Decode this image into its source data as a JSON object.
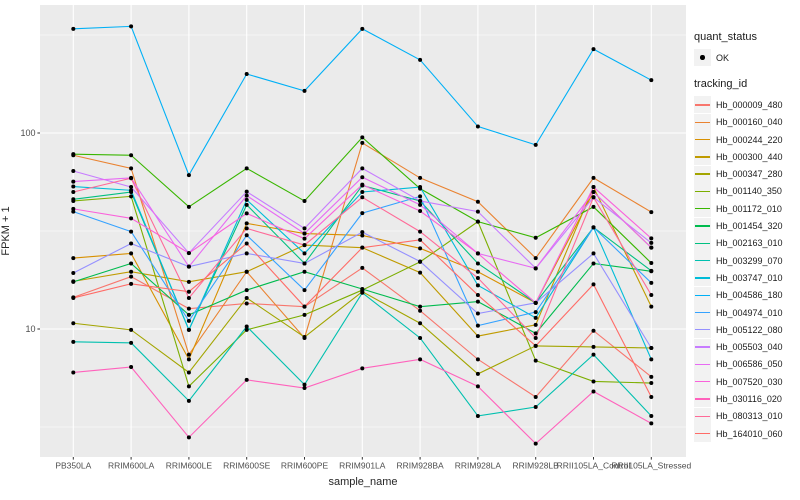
{
  "figure": {
    "background": "#FFFFFF",
    "panel_background": "#EBEBEB",
    "grid_color": "#FFFFFF",
    "tick_color": "#333333",
    "tick_label_color": "#4d4d4d",
    "point_color": "#000000"
  },
  "axes": {
    "y_title": "FPKM + 1",
    "x_title": "sample_name",
    "y_tick_labels": [
      "100",
      "10"
    ],
    "y_tick_values": [
      100,
      10
    ],
    "y_minor_values": [
      316.2,
      31.62,
      3.162
    ]
  },
  "legend": {
    "quant_status_title": "quant_status",
    "quant_status_items": [
      {
        "label": "OK",
        "shape": "point",
        "color": "#000000"
      }
    ],
    "tracking_title": "tracking_id",
    "key_fill": "#F2F2F2"
  },
  "chart_data": {
    "type": "line",
    "title": "",
    "x_label": "sample_name",
    "y_label": "FPKM + 1",
    "y_scale": "log10",
    "ylim": [
      2.2,
      450
    ],
    "grid": true,
    "legend_position": "right",
    "categories": [
      "PB350LA",
      "RRIM600LA",
      "RRIM600LE",
      "RRIM600SE",
      "RRIM600PE",
      "RRIM901LA",
      "RRIM928BA",
      "RRIM928LA",
      "RRIM928LB",
      "RRII105LA_Control",
      "RRII105LA_Stressed"
    ],
    "series": [
      {
        "name": "Hb_000009_480",
        "color": "#F8766D",
        "values": [
          14.5,
          18.5,
          12.7,
          13.5,
          13.0,
          20.5,
          12.4,
          7.0,
          4.5,
          9.8,
          5.7
        ]
      },
      {
        "name": "Hb_000160_040",
        "color": "#EA8331",
        "values": [
          77,
          66,
          7.4,
          19.6,
          9.0,
          89,
          59,
          44.6,
          23,
          59,
          39.5
        ]
      },
      {
        "name": "Hb_000244_220",
        "color": "#D89000",
        "values": [
          23,
          24.3,
          7.0,
          34.6,
          30.7,
          30,
          25.8,
          19.6,
          13.6,
          50,
          26
        ]
      },
      {
        "name": "Hb_000300_440",
        "color": "#C09B00",
        "values": [
          17.5,
          19.6,
          17.4,
          19.6,
          26.8,
          26,
          19.4,
          9.2,
          10.5,
          53,
          13.0
        ]
      },
      {
        "name": "Hb_000347_280",
        "color": "#A3A500",
        "values": [
          10.7,
          9.9,
          6.0,
          14.4,
          9.1,
          15.5,
          10.7,
          5.9,
          8.2,
          8.1,
          8.0
        ]
      },
      {
        "name": "Hb_001140_350",
        "color": "#7CAE00",
        "values": [
          45,
          47.5,
          5.1,
          9.9,
          11.8,
          15.8,
          22,
          35.3,
          6.9,
          5.4,
          5.3
        ]
      },
      {
        "name": "Hb_001172_010",
        "color": "#39B600",
        "values": [
          78,
          77,
          42,
          66,
          45,
          95,
          52,
          35.3,
          29.2,
          42,
          21.7
        ]
      },
      {
        "name": "Hb_001454_320",
        "color": "#00BB4E",
        "values": [
          17.4,
          21.6,
          11.8,
          15.8,
          19.6,
          16.0,
          13.0,
          13.8,
          9.5,
          21.6,
          19.7
        ]
      },
      {
        "name": "Hb_002163_010",
        "color": "#00C081",
        "values": [
          45.9,
          50,
          9.9,
          43,
          21.6,
          54,
          45,
          21.6,
          13.6,
          33,
          19.8
        ]
      },
      {
        "name": "Hb_003299_070",
        "color": "#00C0AF",
        "values": [
          8.6,
          8.5,
          4.3,
          10.3,
          5.2,
          15.3,
          9.0,
          3.6,
          4.0,
          7.4,
          3.6
        ]
      },
      {
        "name": "Hb_003747_010",
        "color": "#00BCD8",
        "values": [
          53.3,
          51,
          9.9,
          45.6,
          24.3,
          50,
          53,
          16.7,
          11.4,
          33,
          7.0
        ]
      },
      {
        "name": "Hb_004586_180",
        "color": "#00B0F6",
        "values": [
          340,
          350,
          61,
          200,
          164,
          340,
          236,
          108,
          87,
          268,
          186
        ]
      },
      {
        "name": "Hb_004974_010",
        "color": "#35A2FF",
        "values": [
          39.7,
          31.4,
          11.0,
          30.1,
          15.8,
          39,
          47.5,
          10.4,
          12.2,
          33,
          17.2
        ]
      },
      {
        "name": "Hb_005122_080",
        "color": "#9590FF",
        "values": [
          19.3,
          27.3,
          20.8,
          24.3,
          21.6,
          31.2,
          22.1,
          12.0,
          13.6,
          24.3,
          8.0
        ]
      },
      {
        "name": "Hb_005503_040",
        "color": "#C77CFF",
        "values": [
          64,
          53,
          24.4,
          50.2,
          32.6,
          66,
          45,
          39.7,
          20.4,
          47,
          27.5
        ]
      },
      {
        "name": "Hb_006586_050",
        "color": "#E76BF3",
        "values": [
          56.5,
          59,
          20.8,
          47.9,
          30.7,
          59.5,
          43,
          24.3,
          20.4,
          50,
          26
        ]
      },
      {
        "name": "Hb_007520_030",
        "color": "#FA62DB",
        "values": [
          41,
          36.7,
          24.4,
          38.9,
          28.9,
          54.5,
          40,
          24.3,
          13.6,
          53,
          29
        ]
      },
      {
        "name": "Hb_030116_020",
        "color": "#FF62BC",
        "values": [
          6.0,
          6.4,
          2.8,
          5.5,
          5.0,
          6.3,
          7.0,
          5.1,
          2.6,
          4.8,
          3.3
        ]
      },
      {
        "name": "Hb_080313_010",
        "color": "#FF6A98",
        "values": [
          50,
          58.8,
          14.4,
          32.6,
          26.8,
          47,
          31.4,
          18.2,
          9.0,
          47,
          14.9
        ]
      },
      {
        "name": "Hb_164010_060",
        "color": "#FF6C67",
        "values": [
          14.4,
          17.0,
          15.5,
          27.3,
          13.0,
          26,
          28.5,
          14.9,
          8.2,
          16.9,
          4.5
        ]
      }
    ]
  }
}
